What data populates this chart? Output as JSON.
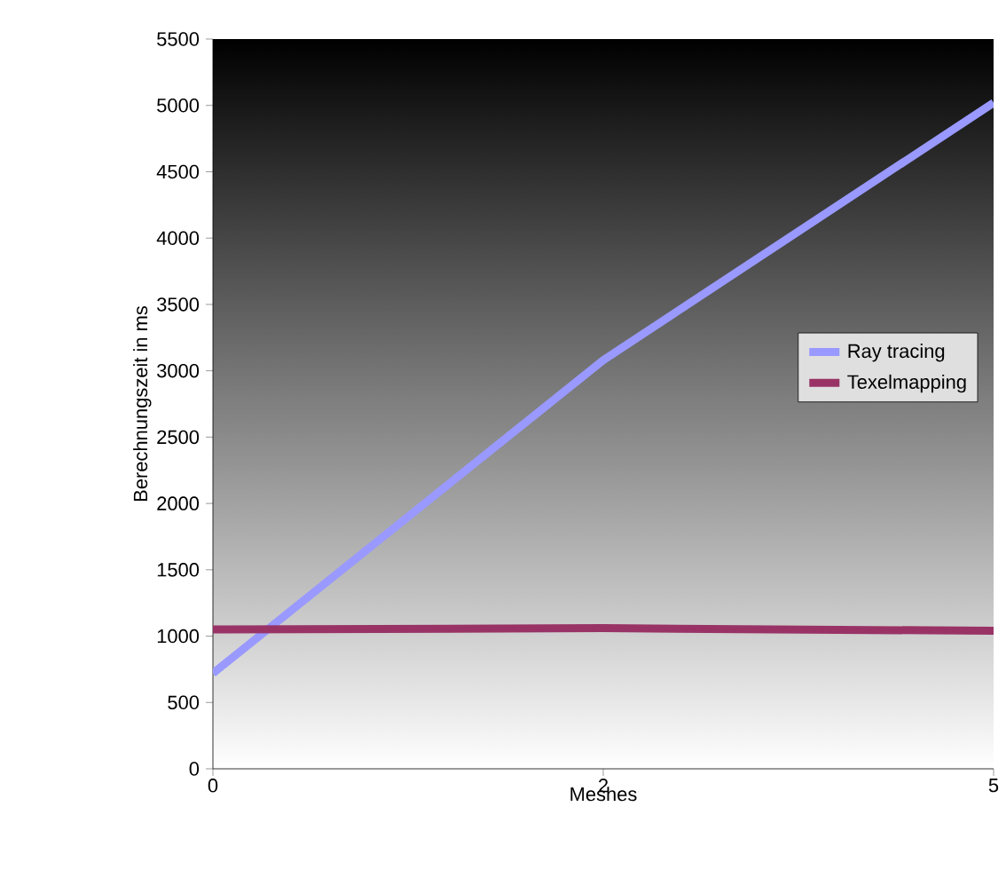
{
  "chart_data": {
    "type": "line",
    "xlabel": "Meshes",
    "ylabel": "Berechnungszeit  in ms",
    "categories": [
      "0",
      "2",
      "5"
    ],
    "series": [
      {
        "name": "Ray tracing",
        "color": "#9999ff",
        "values": [
          720,
          3080,
          5020
        ]
      },
      {
        "name": "Texelmapping",
        "color": "#993366",
        "values": [
          1050,
          1060,
          1040
        ]
      }
    ],
    "ylim": [
      0,
      5500
    ],
    "yticks": [
      0,
      500,
      1000,
      1500,
      2000,
      2500,
      3000,
      3500,
      4000,
      4500,
      5000,
      5500
    ],
    "legend": "right",
    "marker": "none",
    "line_style": "solid",
    "grid": false
  }
}
